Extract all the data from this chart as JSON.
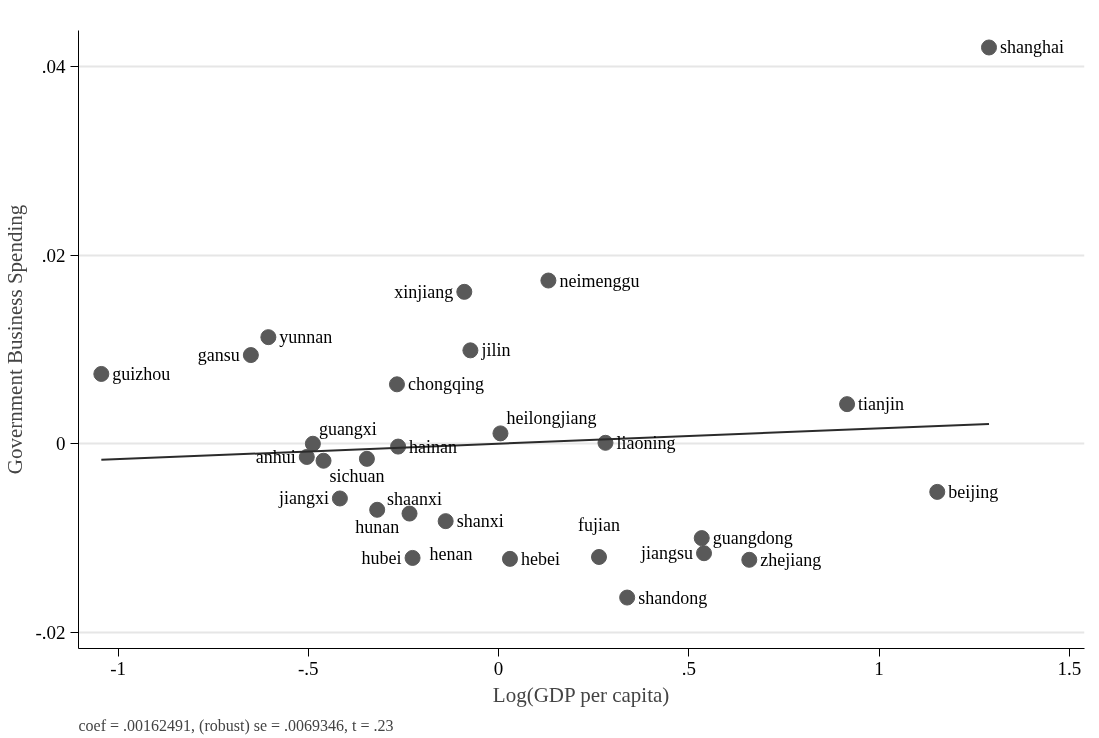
{
  "chart_data": {
    "type": "scatter",
    "xlabel": "Log(GDP per capita)",
    "ylabel": "Government Business Spending",
    "x": [
      1.289,
      0.131,
      -0.09,
      -0.605,
      -0.651,
      -0.074,
      -1.044,
      -0.267,
      0.916,
      0.005,
      0.281,
      -0.488,
      -0.264,
      -0.504,
      -0.46,
      -0.346,
      1.153,
      -0.417,
      -0.319,
      -0.234,
      -0.139,
      0.534,
      0.54,
      0.659,
      -0.226,
      0.03,
      0.264,
      0.338
    ],
    "series": [
      {
        "color": "#595959",
        "marker": "circle",
        "values": [
          0.042,
          0.0173,
          0.0161,
          0.0113,
          0.0094,
          0.0099,
          0.0074,
          0.0063,
          0.0042,
          0.0011,
          0.0001,
          0.0,
          -0.0003,
          -0.0014,
          -0.0018,
          -0.0016,
          -0.0051,
          -0.0058,
          -0.007,
          -0.0074,
          -0.0082,
          -0.01,
          -0.0116,
          -0.0123,
          -0.0121,
          -0.0122,
          -0.012,
          -0.0163
        ]
      },
      {
        "type": "line",
        "color": "#2b2b2b",
        "line_style": "solid",
        "x": [
          -1.044,
          1.289
        ],
        "values": [
          -0.0017,
          0.0021
        ]
      }
    ],
    "xlim": [
      -1.104,
      1.54
    ],
    "ylim": [
      -0.0217,
      0.0438
    ],
    "xticks": [
      -1,
      {
        "value": -0.5,
        "label": "-.5"
      },
      0,
      {
        "value": 0.5,
        "label": ".5"
      },
      1,
      1.5
    ],
    "yticks": [
      {
        "value": -0.02,
        "label": "-.02"
      },
      0,
      {
        "value": 0.02,
        "label": ".02"
      },
      {
        "value": 0.04,
        "label": ".04"
      }
    ],
    "grid": "y",
    "annotations": [
      {
        "text": "shanghai",
        "x": 1.289,
        "y": 0.042
      },
      {
        "text": "neimenggu",
        "x": 0.131,
        "y": 0.0173
      },
      {
        "text": "xinjiang",
        "x": -0.09,
        "y": 0.0161
      },
      {
        "text": "yunnan",
        "x": -0.605,
        "y": 0.0113
      },
      {
        "text": "gansu",
        "x": -0.651,
        "y": 0.0094
      },
      {
        "text": "jilin",
        "x": -0.074,
        "y": 0.0099
      },
      {
        "text": "guizhou",
        "x": -1.044,
        "y": 0.0074
      },
      {
        "text": "chongqing",
        "x": -0.267,
        "y": 0.0063
      },
      {
        "text": "tianjin",
        "x": 0.916,
        "y": 0.0042
      },
      {
        "text": "heilongjiang",
        "x": 0.005,
        "y": 0.0011
      },
      {
        "text": "liaoning",
        "x": 0.281,
        "y": 0.0001
      },
      {
        "text": "guangxi",
        "x": -0.488,
        "y": 0.0
      },
      {
        "text": "hainan",
        "x": -0.264,
        "y": -0.0003
      },
      {
        "text": "anhui",
        "x": -0.504,
        "y": -0.0014
      },
      {
        "text": "sichuan",
        "x": -0.46,
        "y": -0.0018
      },
      {
        "text": "shaanxi",
        "x": -0.346,
        "y": -0.0016
      },
      {
        "text": "beijing",
        "x": 1.153,
        "y": -0.0051
      },
      {
        "text": "jiangxi",
        "x": -0.417,
        "y": -0.0058
      },
      {
        "text": "hunan",
        "x": -0.319,
        "y": -0.007
      },
      {
        "text": "henan",
        "x": -0.234,
        "y": -0.0074
      },
      {
        "text": "shanxi",
        "x": -0.139,
        "y": -0.0082
      },
      {
        "text": "guangdong",
        "x": 0.534,
        "y": -0.01
      },
      {
        "text": "jiangsu",
        "x": 0.54,
        "y": -0.0116
      },
      {
        "text": "zhejiang",
        "x": 0.659,
        "y": -0.0123
      },
      {
        "text": "hubei",
        "x": -0.226,
        "y": -0.0121
      },
      {
        "text": "hebei",
        "x": 0.03,
        "y": -0.0122
      },
      {
        "text": "fujian",
        "x": 0.264,
        "y": -0.012
      },
      {
        "text": "shandong",
        "x": 0.338,
        "y": -0.0163
      },
      "coef = .00162491, (robust) se = .0069346, t = .23"
    ]
  }
}
